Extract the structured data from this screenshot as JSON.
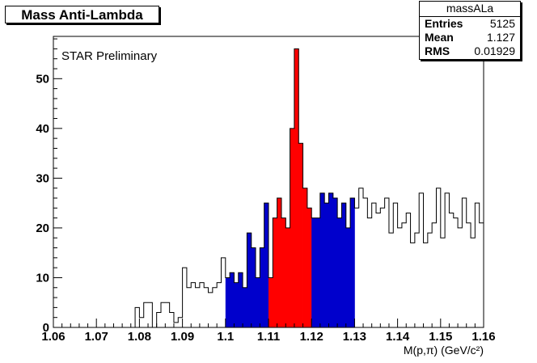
{
  "chart_data": {
    "type": "bar",
    "title": "Mass Anti-Lambda",
    "annotation": "STAR Preliminary",
    "xlabel": "M(p,π) (GeV/c²)",
    "ylabel": "",
    "xlim": [
      1.06,
      1.16
    ],
    "ylim": [
      0,
      58.5
    ],
    "bin_width": 0.001,
    "x_ticks": [
      "1.06",
      "1.07",
      "1.08",
      "1.09",
      "1.1",
      "1.11",
      "1.12",
      "1.13",
      "1.14",
      "1.15",
      "1.16"
    ],
    "y_ticks": [
      "0",
      "10",
      "20",
      "30",
      "40",
      "50"
    ],
    "stats": {
      "name": "massALa",
      "rows": [
        {
          "label": "Entries",
          "value": "5125"
        },
        {
          "label": "Mean",
          "value": "1.127"
        },
        {
          "label": "RMS",
          "value": "0.01929"
        }
      ]
    },
    "colors": {
      "signal": "#ff0000",
      "sideband": "#0000cc",
      "outline": "#000000"
    },
    "signal_range": [
      1.11,
      1.12
    ],
    "sideband_ranges": [
      [
        1.1,
        1.11
      ],
      [
        1.12,
        1.13
      ]
    ],
    "series": [
      {
        "x_start": 1.06,
        "values": [
          0,
          0,
          0,
          0,
          0,
          0,
          0,
          0,
          0,
          0,
          0,
          0,
          0,
          0,
          0,
          0,
          0,
          0,
          0,
          4,
          2,
          5,
          5,
          0,
          3,
          5,
          5,
          3,
          1,
          2,
          12,
          8,
          9,
          8,
          9,
          8,
          7,
          8,
          9,
          14,
          10,
          11,
          9,
          11,
          8,
          19,
          16,
          10,
          16,
          25,
          10,
          22,
          26,
          22,
          20,
          40,
          56,
          37,
          28,
          24,
          22,
          22,
          27,
          25,
          27,
          26,
          22,
          25,
          20,
          26,
          24,
          28,
          26,
          22,
          25,
          23,
          24,
          26,
          19,
          25,
          20,
          21,
          23,
          17,
          19,
          27,
          17,
          19,
          21,
          28,
          18,
          27,
          23,
          22,
          20,
          26,
          21,
          18,
          25,
          21
        ]
      }
    ]
  }
}
